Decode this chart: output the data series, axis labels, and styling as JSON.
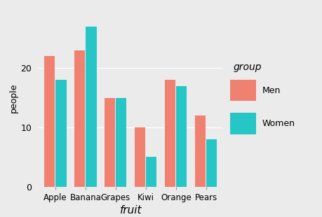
{
  "categories": [
    "Apple",
    "Banana",
    "Grapes",
    "Kiwi",
    "Orange",
    "Pears"
  ],
  "men_values": [
    22,
    23,
    15,
    10,
    18,
    12
  ],
  "women_values": [
    18,
    27,
    15,
    5,
    17,
    8
  ],
  "men_color": "#F08070",
  "women_color": "#26C6C6",
  "xlabel": "fruit",
  "ylabel": "people",
  "ylim": [
    0,
    30
  ],
  "yticks": [
    0,
    10,
    20
  ],
  "background_color": "#EBEBEB",
  "plot_bg_color": "#EBEBEB",
  "grid_color": "#FFFFFF",
  "legend_title": "group",
  "legend_labels": [
    "Men",
    "Women"
  ],
  "bar_width": 0.35,
  "bar_gap": 0.38
}
